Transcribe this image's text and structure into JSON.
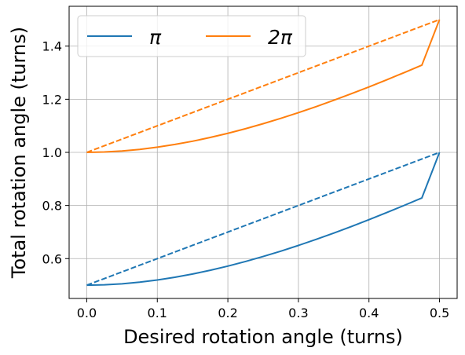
{
  "chart_data": {
    "type": "line",
    "title": "",
    "xlabel": "Desired rotation angle (turns)",
    "ylabel": "Total rotation angle (turns)",
    "xlim": [
      -0.025,
      0.525
    ],
    "ylim": [
      0.45,
      1.55
    ],
    "xticks": [
      0.0,
      0.1,
      0.2,
      0.3,
      0.4,
      0.5
    ],
    "xtick_labels": [
      "0.0",
      "0.1",
      "0.2",
      "0.3",
      "0.4",
      "0.5"
    ],
    "yticks": [
      0.6,
      0.8,
      1.0,
      1.2,
      1.4
    ],
    "ytick_labels": [
      "0.6",
      "0.8",
      "1.0",
      "1.2",
      "1.4"
    ],
    "grid": true,
    "legend": {
      "placement": "top-left",
      "columns": 2
    },
    "x": [
      0.0,
      0.025,
      0.05,
      0.075,
      0.1,
      0.125,
      0.15,
      0.175,
      0.2,
      0.225,
      0.25,
      0.275,
      0.3,
      0.325,
      0.35,
      0.375,
      0.4,
      0.425,
      0.45,
      0.475,
      0.5
    ],
    "series": [
      {
        "name": "π",
        "color": "#1f77b4",
        "style": "solid",
        "values": [
          0.5,
          0.5013,
          0.5051,
          0.5112,
          0.5195,
          0.5298,
          0.542,
          0.5561,
          0.5718,
          0.5891,
          0.6079,
          0.6281,
          0.6496,
          0.6722,
          0.696,
          0.7208,
          0.7465,
          0.7731,
          0.8004,
          0.8284,
          1.0
        ]
      },
      {
        "name": "",
        "color": "#1f77b4",
        "style": "dashed",
        "values": [
          0.5,
          0.525,
          0.55,
          0.575,
          0.6,
          0.625,
          0.65,
          0.675,
          0.7,
          0.725,
          0.75,
          0.775,
          0.8,
          0.825,
          0.85,
          0.875,
          0.9,
          0.925,
          0.95,
          0.975,
          1.0
        ]
      },
      {
        "name": "2π",
        "color": "#ff7f0e",
        "style": "solid",
        "values": [
          1.0,
          1.0013,
          1.0051,
          1.0112,
          1.0195,
          1.0298,
          1.042,
          1.0561,
          1.0718,
          1.0891,
          1.1079,
          1.1281,
          1.1496,
          1.1722,
          1.196,
          1.2208,
          1.2465,
          1.2731,
          1.3004,
          1.3284,
          1.5
        ]
      },
      {
        "name": "",
        "color": "#ff7f0e",
        "style": "dashed",
        "values": [
          1.0,
          1.025,
          1.05,
          1.075,
          1.1,
          1.125,
          1.15,
          1.175,
          1.2,
          1.225,
          1.25,
          1.275,
          1.3,
          1.325,
          1.35,
          1.375,
          1.4,
          1.425,
          1.45,
          1.475,
          1.5
        ]
      }
    ]
  }
}
